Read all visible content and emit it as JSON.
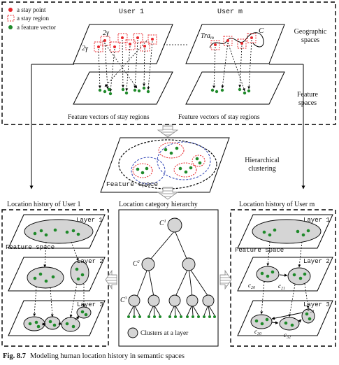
{
  "legend": {
    "stay_point": "a stay point",
    "stay_region": "a stay region",
    "feature_vector": "a feature vector"
  },
  "top": {
    "user1": "User 1",
    "userm": "User m",
    "geographic_spaces": "Geographic spaces",
    "feature_spaces": "Feature spaces",
    "fv_caption_left": "Feature vectors of stay regions",
    "fv_caption_right": "Feature vectors of stay regions",
    "gamma_a": "2γ",
    "gamma_b": "2γ",
    "tra_main": "Tra",
    "tra_sub": "m",
    "c_symbol": "C"
  },
  "middle": {
    "feature_space": "Feature space",
    "hierarchical_clustering": "Hierarchical clustering"
  },
  "bottom": {
    "lh_user1": "Location history of User 1",
    "lch": "Location category hierarchy",
    "lh_userm": "Location history of User m",
    "layer1": "Layer 1",
    "layer2": "Layer 2",
    "layer3": "Layer 3",
    "feature_space": "Feature space",
    "c1": "C",
    "c1_sup": "1",
    "c2": "C",
    "c2_sup": "2",
    "c3": "C",
    "c3_sup": "3",
    "clusters_at_layer": "Clusters at a layer",
    "c20": "c",
    "c20_sub": "20",
    "c21": "c",
    "c21_sub": "21",
    "c30": "c",
    "c30_sub": "30",
    "c31": "c",
    "c31_sub": "31",
    "c32": "c",
    "c32_sub": "32"
  },
  "caption": {
    "label": "Fig. 8.7",
    "text": "Modeling human location history in semantic spaces"
  },
  "colors": {
    "red": "#e8262b",
    "green": "#1f8a2a",
    "gray": "#d5d5d5",
    "black": "#000000",
    "blue": "#2b3fb3"
  }
}
